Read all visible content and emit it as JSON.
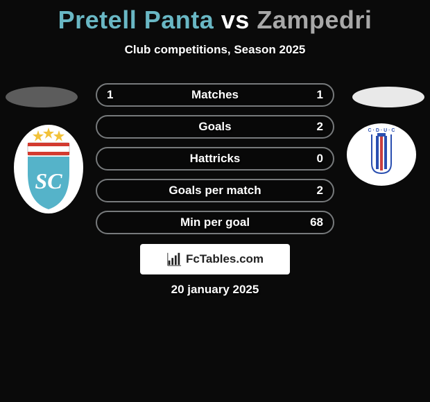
{
  "background_color": "#0a0a0a",
  "heading": {
    "player1": "Pretell Panta",
    "vs": "vs",
    "player2": "Zampedri",
    "color_p1": "#69b7c4",
    "color_vs": "#ffffff",
    "color_p2": "#a8a8a8",
    "fontsize": 36
  },
  "subtitle": {
    "text": "Club competitions, Season 2025",
    "color": "#ffffff",
    "fontsize": 17
  },
  "head_ellipse": {
    "left_color": "#5c5c5c",
    "right_color": "#e9e9e9"
  },
  "player1_crest": {
    "name": "Sporting Cristal",
    "bg": "#ffffff",
    "shield_fill": "#55b3c9",
    "red": "#d33a2f",
    "yellow": "#f2c23a",
    "text": "SC"
  },
  "player2_crest": {
    "name": "Universidad Catolica",
    "bg": "#ffffff",
    "blue": "#2a4fb0",
    "red": "#c94040",
    "text": "UC"
  },
  "stats": {
    "pill_border_color": "#777a7c",
    "label_color": "#ffffff",
    "value_color": "#ffffff",
    "rows": [
      {
        "label": "Matches",
        "left": "1",
        "right": "1"
      },
      {
        "label": "Goals",
        "left": "",
        "right": "2"
      },
      {
        "label": "Hattricks",
        "left": "",
        "right": "0"
      },
      {
        "label": "Goals per match",
        "left": "",
        "right": "2"
      },
      {
        "label": "Min per goal",
        "left": "",
        "right": "68"
      }
    ]
  },
  "brand": {
    "bg": "#ffffff",
    "text_color": "#222222",
    "text": "FcTables.com",
    "icon_color": "#222222"
  },
  "date": {
    "text": "20 january 2025",
    "color": "#ffffff",
    "fontsize": 17
  }
}
